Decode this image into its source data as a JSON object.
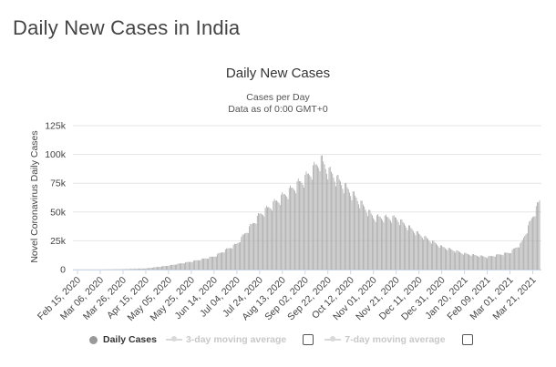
{
  "page": {
    "title": "Daily New Cases in India"
  },
  "chart_data": {
    "type": "bar",
    "title": "Daily New Cases",
    "subtitle_lines": [
      "Cases per Day",
      "Data as of 0:00 GMT+0"
    ],
    "xlabel": "",
    "ylabel": "Novel Coronavirus Daily Cases",
    "ylim": [
      0,
      125000
    ],
    "y_ticks": [
      0,
      25000,
      50000,
      75000,
      100000,
      125000
    ],
    "y_tick_labels": [
      "0",
      "25k",
      "50k",
      "75k",
      "100k",
      "125k"
    ],
    "x_tick_labels": [
      "Feb 15, 2020",
      "Mar 06, 2020",
      "Mar 26, 2020",
      "Apr 15, 2020",
      "May 05, 2020",
      "May 25, 2020",
      "Jun 14, 2020",
      "Jul 04, 2020",
      "Jul 24, 2020",
      "Aug 13, 2020",
      "Sep 02, 2020",
      "Sep 22, 2020",
      "Oct 12, 2020",
      "Nov 01, 2020",
      "Nov 21, 2020",
      "Dec 11, 2020",
      "Dec 31, 2020",
      "Jan 20, 2021",
      "Feb 09, 2021",
      "Mar 01, 2021",
      "Mar 21, 2021"
    ],
    "grid": true,
    "series": [
      {
        "name": "Daily Cases",
        "color": "#a6a6a6",
        "legend_color": "#999999",
        "visible": true,
        "anchor_dates": [
          "Feb 15, 2020",
          "Mar 06, 2020",
          "Mar 26, 2020",
          "Apr 15, 2020",
          "May 05, 2020",
          "May 25, 2020",
          "Jun 14, 2020",
          "Jul 04, 2020",
          "Jul 24, 2020",
          "Aug 13, 2020",
          "Sep 02, 2020",
          "Sep 16, 2020",
          "Sep 22, 2020",
          "Oct 12, 2020",
          "Nov 01, 2020",
          "Nov 21, 2020",
          "Dec 11, 2020",
          "Dec 31, 2020",
          "Jan 20, 2021",
          "Feb 09, 2021",
          "Mar 01, 2021",
          "Mar 11, 2021",
          "Mar 21, 2021",
          "Mar 27, 2021"
        ],
        "anchor_values": [
          0,
          10,
          350,
          1000,
          3500,
          7000,
          11500,
          22500,
          48000,
          64000,
          80000,
          96000,
          87000,
          68000,
          46000,
          45000,
          31000,
          20000,
          14000,
          11000,
          15000,
          23000,
          47000,
          60000
        ]
      },
      {
        "name": "3-day moving average",
        "visible": false
      },
      {
        "name": "7-day moving average",
        "visible": false
      }
    ]
  },
  "legend": {
    "daily_label": "Daily Cases",
    "ma3_label": "3-day moving average",
    "ma7_label": "7-day moving average"
  }
}
